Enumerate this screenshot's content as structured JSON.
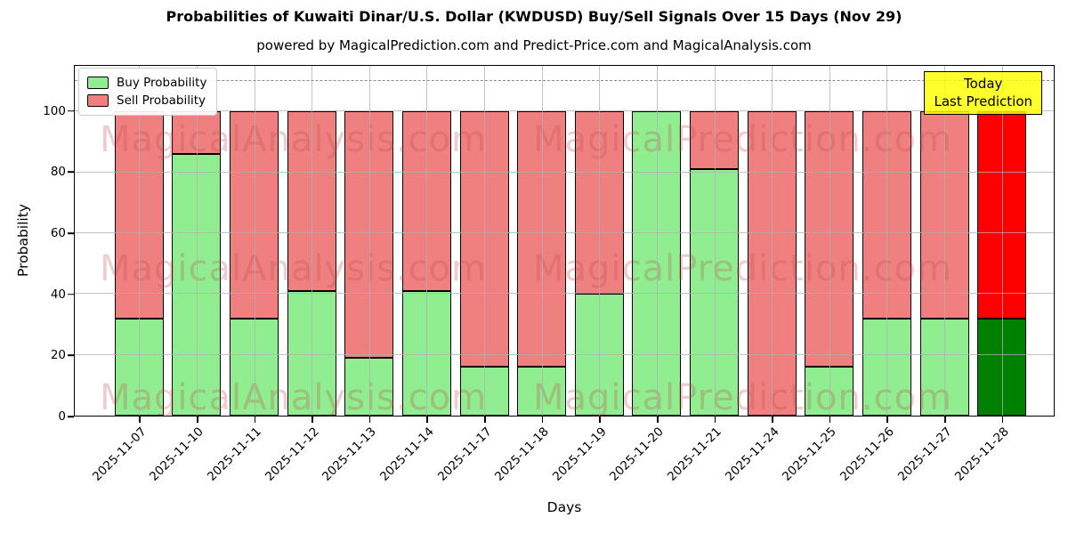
{
  "title": "Probabilities of Kuwaiti Dinar/U.S. Dollar (KWDUSD) Buy/Sell Signals Over 15 Days (Nov 29)",
  "subtitle": "powered by MagicalPrediction.com and Predict-Price.com and MagicalAnalysis.com",
  "legend": {
    "buy_label": "Buy Probability",
    "sell_label": "Sell Probability"
  },
  "annotation": {
    "line1": "Today",
    "line2": "Last Prediction"
  },
  "axes": {
    "xlabel": "Days",
    "ylabel": "Probability",
    "yticks": [
      0,
      20,
      40,
      60,
      80,
      100
    ],
    "ymax_display": 115,
    "dashed_line_y": 110
  },
  "watermarks": {
    "left": "MagicalAnalysis.com",
    "right": "MagicalPrediction.com"
  },
  "colors": {
    "buy": "#90ee90",
    "sell": "#f08080",
    "today_buy": "#008000",
    "today_sell": "#ff0000",
    "annotation_bg": "#ffff00",
    "grid": "#b0b0b0"
  },
  "chart_data": {
    "type": "bar",
    "stacked": true,
    "title": "Probabilities of Kuwaiti Dinar/U.S. Dollar (KWDUSD) Buy/Sell Signals Over 15 Days (Nov 29)",
    "xlabel": "Days",
    "ylabel": "Probability",
    "ylim": [
      0,
      115
    ],
    "grid": true,
    "legend_position": "upper left",
    "categories": [
      "2025-11-07",
      "2025-11-10",
      "2025-11-11",
      "2025-11-12",
      "2025-11-13",
      "2025-11-14",
      "2025-11-17",
      "2025-11-18",
      "2025-11-19",
      "2025-11-20",
      "2025-11-21",
      "2025-11-24",
      "2025-11-25",
      "2025-11-26",
      "2025-11-27",
      "2025-11-28"
    ],
    "series": [
      {
        "name": "Buy Probability",
        "values": [
          32,
          86,
          32,
          41,
          19,
          41,
          16,
          16,
          40,
          100,
          81,
          0,
          16,
          32,
          32,
          32
        ]
      },
      {
        "name": "Sell Probability",
        "values": [
          68,
          14,
          68,
          59,
          81,
          59,
          84,
          84,
          60,
          0,
          19,
          100,
          84,
          68,
          68,
          68
        ]
      }
    ],
    "today_index": 15,
    "annotations": [
      {
        "text": "Today\nLast Prediction",
        "position": "top-right"
      },
      {
        "type": "hline",
        "y": 110,
        "style": "dashed"
      }
    ]
  }
}
